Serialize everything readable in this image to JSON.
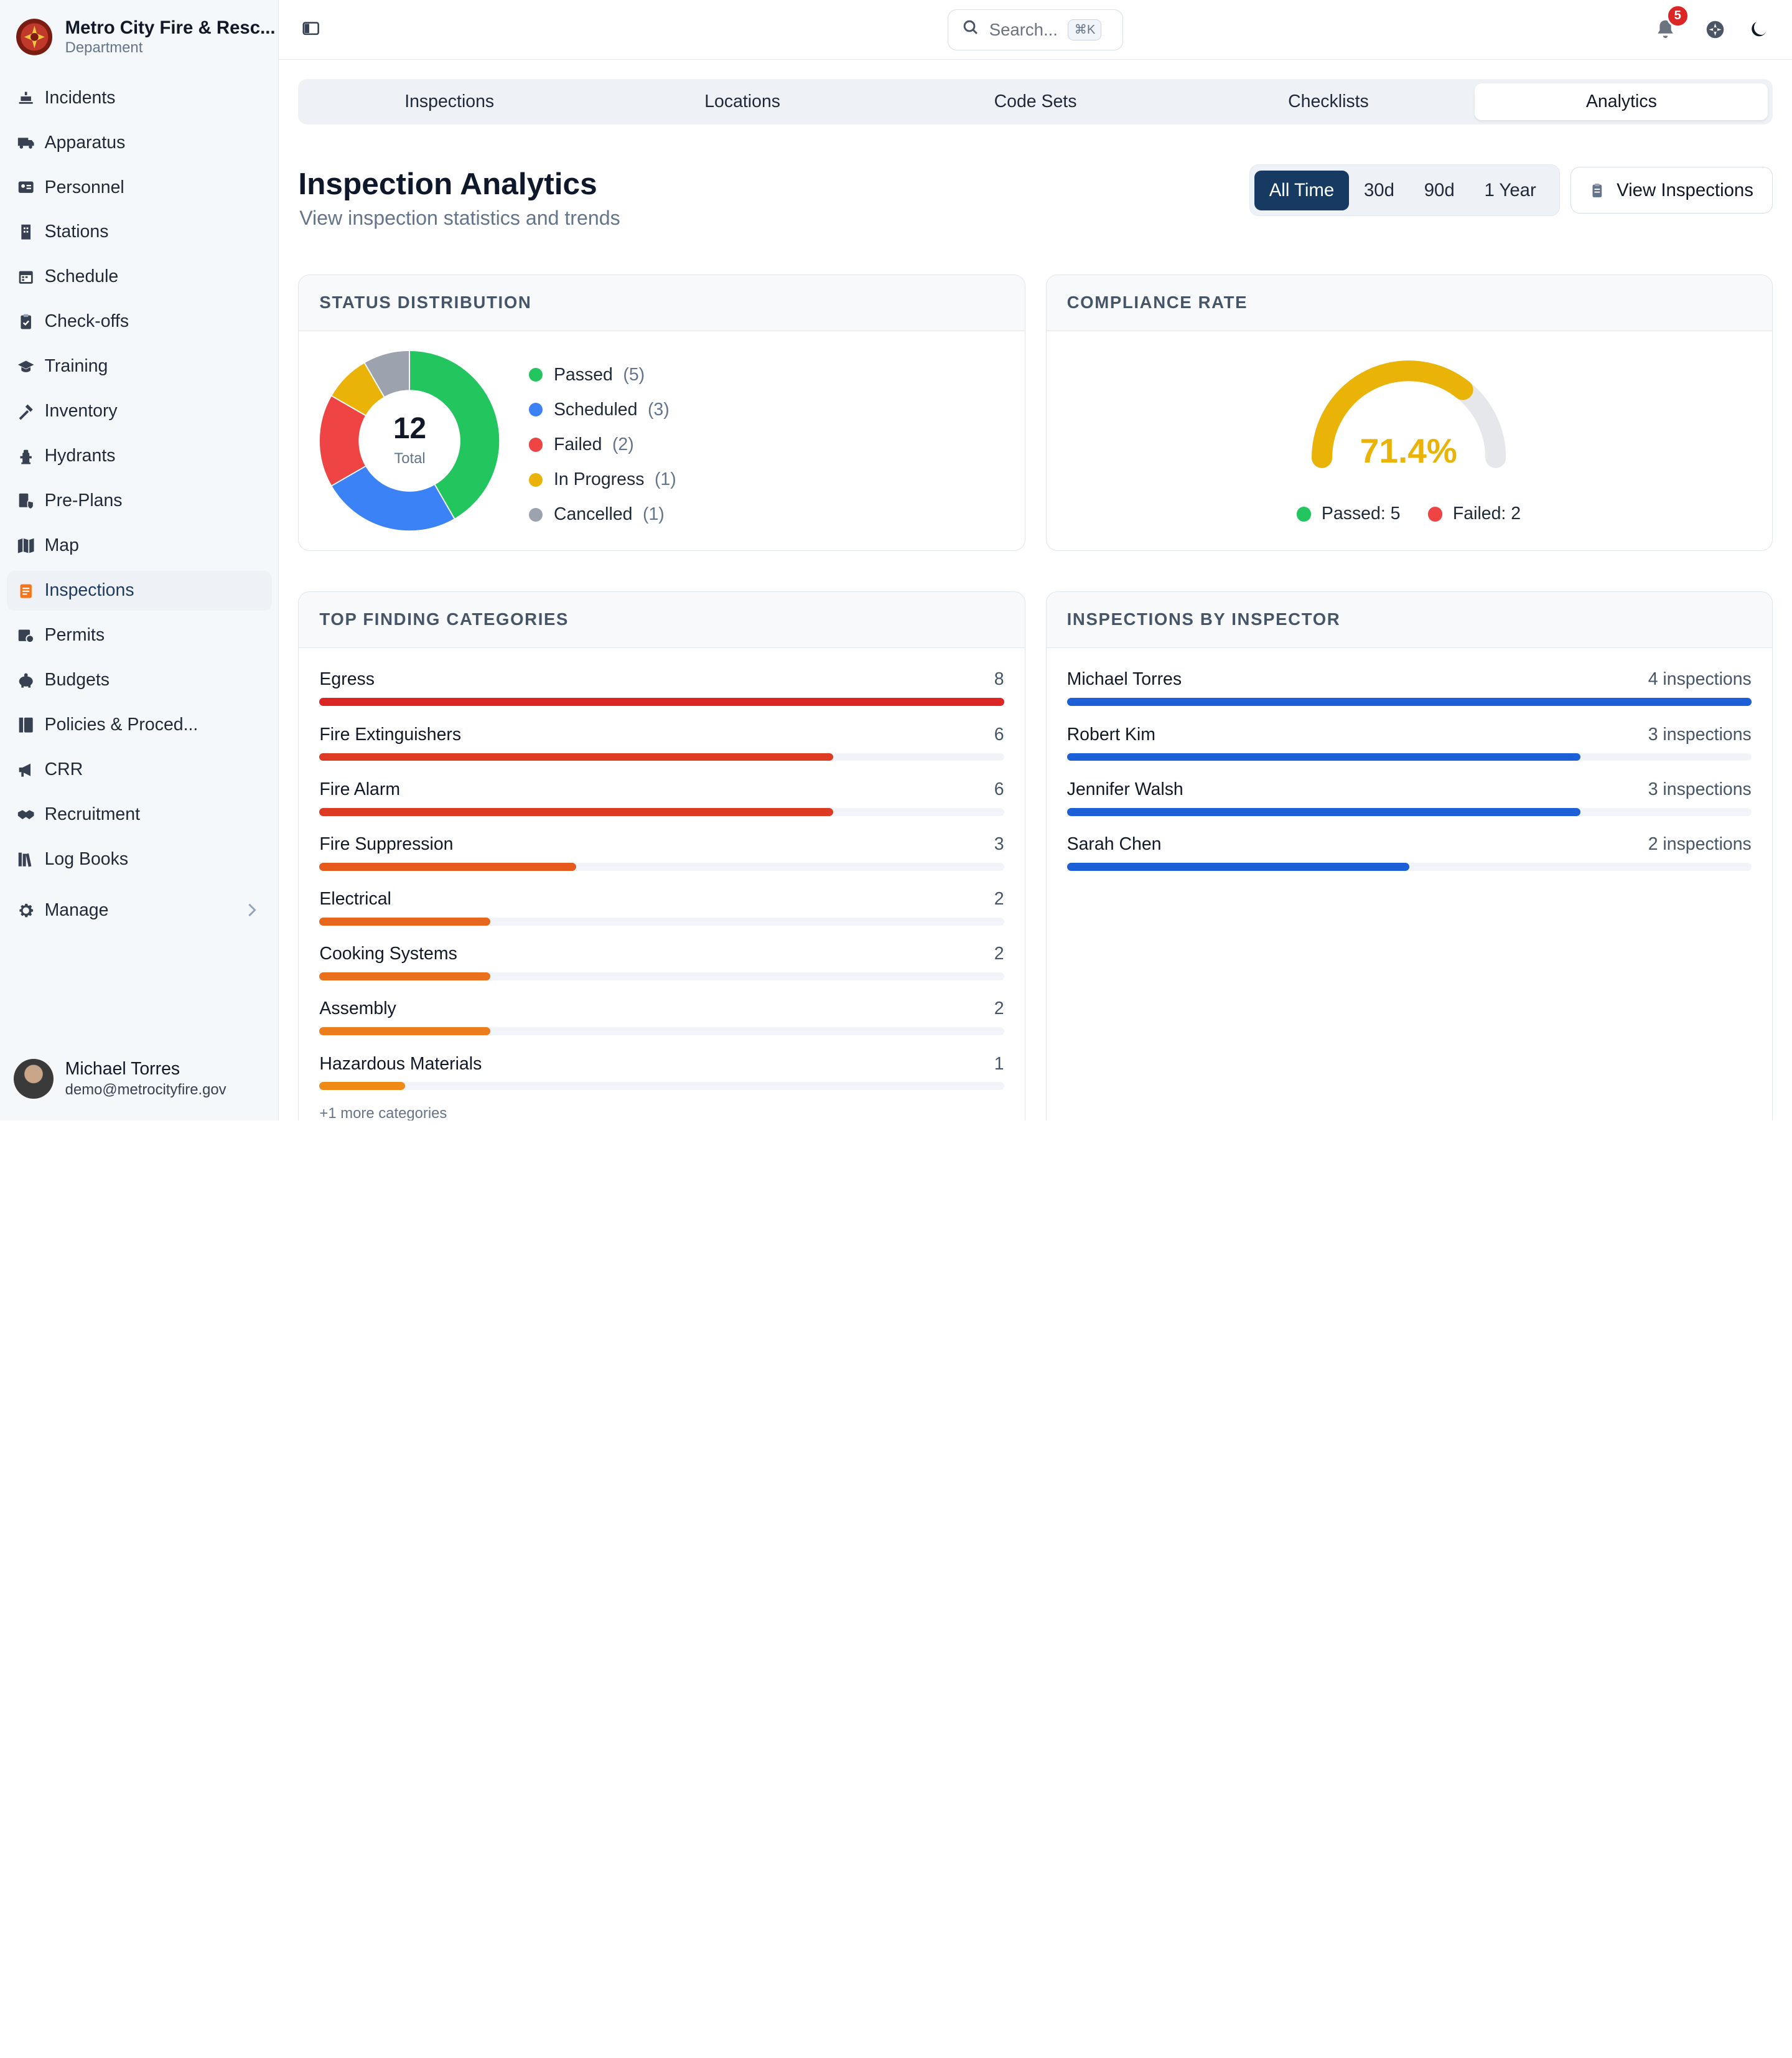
{
  "org": {
    "name": "Metro City Fire & Resc...",
    "sub": "Department"
  },
  "nav": [
    {
      "label": "Incidents",
      "icon": "incident-icon"
    },
    {
      "label": "Apparatus",
      "icon": "truck-icon"
    },
    {
      "label": "Personnel",
      "icon": "id-card-icon"
    },
    {
      "label": "Stations",
      "icon": "building-icon"
    },
    {
      "label": "Schedule",
      "icon": "calendar-icon"
    },
    {
      "label": "Check-offs",
      "icon": "clipboard-icon"
    },
    {
      "label": "Training",
      "icon": "graduation-cap-icon"
    },
    {
      "label": "Inventory",
      "icon": "tools-icon"
    },
    {
      "label": "Hydrants",
      "icon": "hydrant-icon"
    },
    {
      "label": "Pre-Plans",
      "icon": "document-shield-icon"
    },
    {
      "label": "Map",
      "icon": "map-icon"
    },
    {
      "label": "Inspections",
      "icon": "inspection-icon",
      "active": true
    },
    {
      "label": "Permits",
      "icon": "permit-icon"
    },
    {
      "label": "Budgets",
      "icon": "piggy-bank-icon"
    },
    {
      "label": "Policies & Proced...",
      "icon": "book-icon"
    },
    {
      "label": "CRR",
      "icon": "megaphone-icon"
    },
    {
      "label": "Recruitment",
      "icon": "handshake-icon"
    },
    {
      "label": "Log Books",
      "icon": "books-icon"
    }
  ],
  "manage_label": "Manage",
  "user": {
    "name": "Michael Torres",
    "email": "demo@metrocityfire.gov"
  },
  "search": {
    "placeholder": "Search...",
    "shortcut": "⌘K"
  },
  "notifications": {
    "count": "5"
  },
  "tabs": [
    "Inspections",
    "Locations",
    "Code Sets",
    "Checklists",
    "Analytics"
  ],
  "active_tab": "Analytics",
  "header": {
    "title": "Inspection Analytics",
    "subtitle": "View inspection statistics and trends"
  },
  "ranges": [
    "All Time",
    "30d",
    "90d",
    "1 Year"
  ],
  "active_range": "All Time",
  "view_button": "View Inspections",
  "status": {
    "title": "STATUS DISTRIBUTION",
    "total": "12",
    "total_label": "Total",
    "items": [
      {
        "label": "Passed",
        "count": "(5)",
        "value": 5,
        "color": "#22c55e"
      },
      {
        "label": "Scheduled",
        "count": "(3)",
        "value": 3,
        "color": "#3b82f6"
      },
      {
        "label": "Failed",
        "count": "(2)",
        "value": 2,
        "color": "#ef4444"
      },
      {
        "label": "In Progress",
        "count": "(1)",
        "value": 1,
        "color": "#eab308"
      },
      {
        "label": "Cancelled",
        "count": "(1)",
        "value": 1,
        "color": "#9ca3af"
      }
    ]
  },
  "compliance": {
    "title": "COMPLIANCE RATE",
    "rate": 71.4,
    "rate_text": "71.4%",
    "passed_text": "Passed: 5",
    "failed_text": "Failed: 2",
    "color": "#eab308"
  },
  "findings": {
    "title": "TOP FINDING CATEGORIES",
    "max": 8,
    "items": [
      {
        "label": "Egress",
        "value": 8,
        "color": "#dc2626"
      },
      {
        "label": "Fire Extinguishers",
        "value": 6,
        "color": "#dc3a22"
      },
      {
        "label": "Fire Alarm",
        "value": 6,
        "color": "#dc3a22"
      },
      {
        "label": "Fire Suppression",
        "value": 3,
        "color": "#e65a1e"
      },
      {
        "label": "Electrical",
        "value": 2,
        "color": "#e8671e"
      },
      {
        "label": "Cooking Systems",
        "value": 2,
        "color": "#ea701d"
      },
      {
        "label": "Assembly",
        "value": 2,
        "color": "#ed7d1c"
      },
      {
        "label": "Hazardous Materials",
        "value": 1,
        "color": "#ef8a17"
      }
    ],
    "more": "+1 more categories"
  },
  "inspectors": {
    "title": "INSPECTIONS BY INSPECTOR",
    "max": 4,
    "color": "#1d5fd6",
    "items": [
      {
        "label": "Michael Torres",
        "value": 4,
        "text": "4 inspections"
      },
      {
        "label": "Robert Kim",
        "value": 3,
        "text": "3 inspections"
      },
      {
        "label": "Jennifer Walsh",
        "value": 3,
        "text": "3 inspections"
      },
      {
        "label": "Sarah Chen",
        "value": 2,
        "text": "2 inspections"
      }
    ]
  }
}
